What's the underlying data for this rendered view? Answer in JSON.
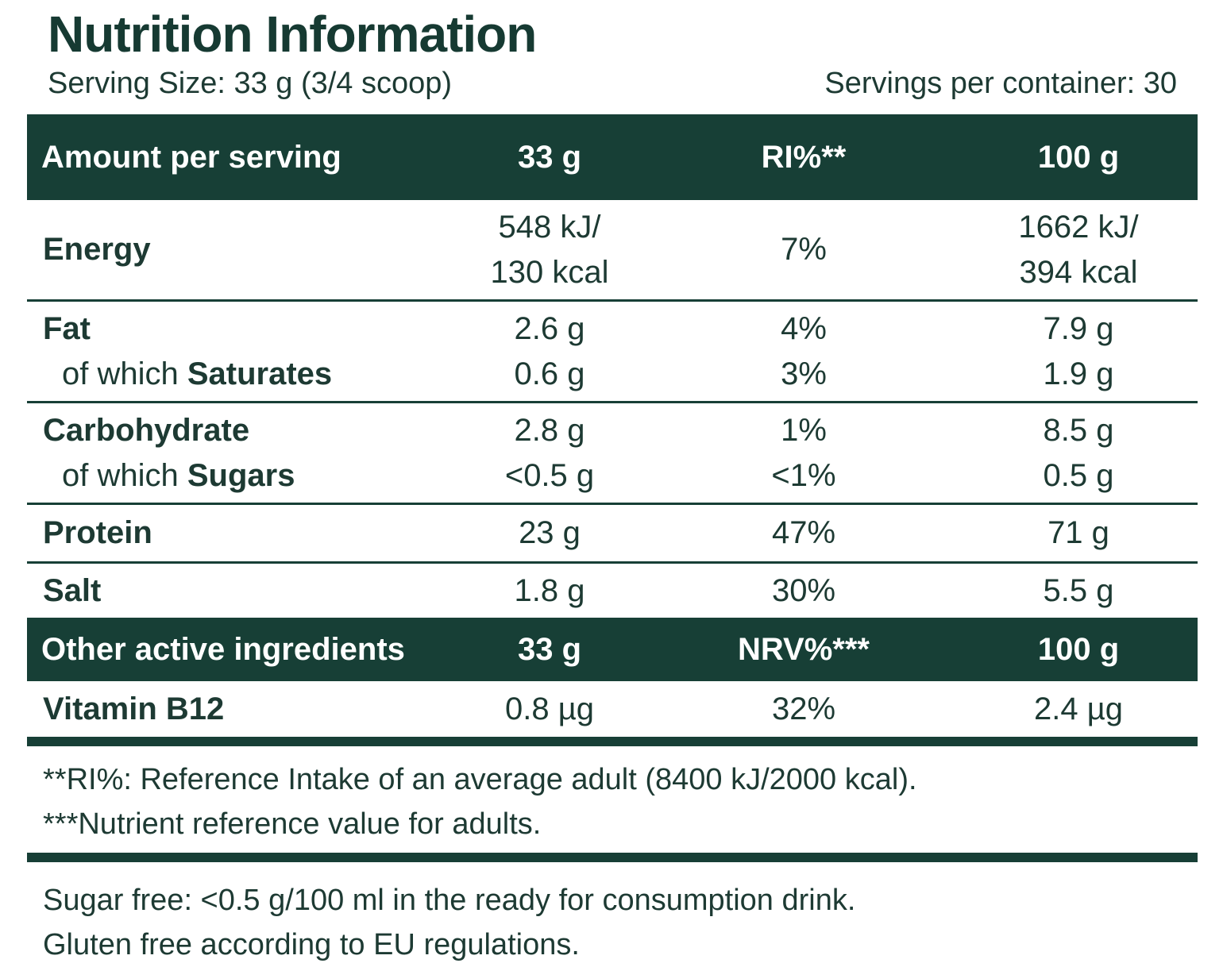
{
  "title": "Nutrition Information",
  "serving_size": "Serving Size: 33 g (3/4 scoop)",
  "servings_per_container": "Servings per container: 30",
  "header1": {
    "label": "Amount per serving",
    "col1": "33 g",
    "col2": "RI%**",
    "col3": "100 g"
  },
  "rows": {
    "energy": {
      "label": "Energy",
      "v1_line1": "548 kJ/",
      "v1_line2": "130 kcal",
      "ri": "7%",
      "v100_line1": "1662 kJ/",
      "v100_line2": "394 kcal"
    },
    "fat": {
      "label": "Fat",
      "v1": "2.6 g",
      "ri": "4%",
      "v100": "7.9 g"
    },
    "saturates": {
      "prefix": "of which ",
      "label": "Saturates",
      "v1": "0.6 g",
      "ri": "3%",
      "v100": "1.9 g"
    },
    "carbohydrate": {
      "label": "Carbohydrate",
      "v1": "2.8 g",
      "ri": "1%",
      "v100": "8.5 g"
    },
    "sugars": {
      "prefix": "of which ",
      "label": "Sugars",
      "v1": "<0.5 g",
      "ri": "<1%",
      "v100": "0.5 g"
    },
    "protein": {
      "label": "Protein",
      "v1": "23 g",
      "ri": "47%",
      "v100": "71 g"
    },
    "salt": {
      "label": "Salt",
      "v1": "1.8 g",
      "ri": "30%",
      "v100": "5.5 g"
    }
  },
  "header2": {
    "label": "Other active ingredients",
    "col1": "33 g",
    "col2": "NRV%***",
    "col3": "100 g"
  },
  "vitamin_b12": {
    "label": "Vitamin B12",
    "v1": "0.8 µg",
    "nrv": "32%",
    "v100": "2.4 µg"
  },
  "notes": {
    "ri_note": "**RI%: Reference Intake of an average adult (8400 kJ/2000 kcal).",
    "nrv_note": "***Nutrient reference value for adults."
  },
  "footer": {
    "sugar_free": "Sugar free: <0.5 g/100 ml in the ready for consumption drink.",
    "gluten_free": "Gluten free according to EU regulations."
  },
  "colors": {
    "header_bg": "#173f36",
    "text": "#1d3a33"
  }
}
